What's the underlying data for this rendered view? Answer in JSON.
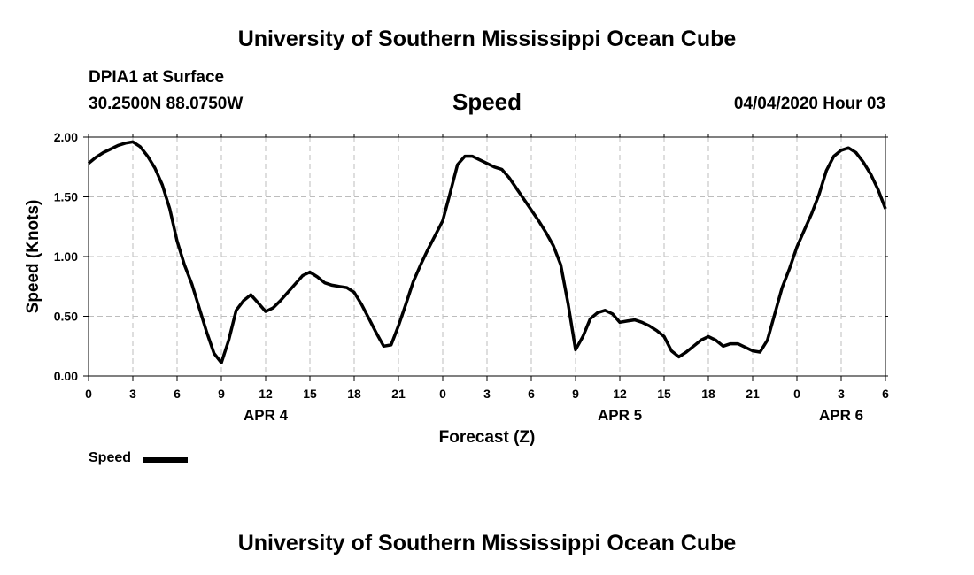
{
  "header": {
    "banner": "University of Southern Mississippi Ocean Cube",
    "station": "DPIA1 at Surface",
    "coords": "30.2500N 88.0750W",
    "plot_title": "Speed",
    "datetime": "04/04/2020 Hour 03"
  },
  "footer": {
    "banner": "University of Southern Mississippi Ocean Cube"
  },
  "legend": {
    "label": "Speed",
    "color": "#000000"
  },
  "chart_data": {
    "type": "line",
    "title": "Speed",
    "xlabel": "Forecast (Z)",
    "ylabel": "Speed (Knots)",
    "xlim": [
      0,
      54
    ],
    "ylim": [
      0,
      2.0
    ],
    "grid": true,
    "x_tick_values": [
      0,
      3,
      6,
      9,
      12,
      15,
      18,
      21,
      24,
      27,
      30,
      33,
      36,
      39,
      42,
      45,
      48,
      51,
      54
    ],
    "x_tick_labels": [
      "0",
      "3",
      "6",
      "9",
      "12",
      "15",
      "18",
      "21",
      "0",
      "3",
      "6",
      "9",
      "12",
      "15",
      "18",
      "21",
      "0",
      "3",
      "6"
    ],
    "y_tick_values": [
      0,
      0.5,
      1.0,
      1.5,
      2.0
    ],
    "y_tick_labels": [
      "0.00",
      "0.50",
      "1.00",
      "1.50",
      "2.00"
    ],
    "day_labels": [
      {
        "label": "APR 4",
        "x": 12
      },
      {
        "label": "APR 5",
        "x": 36
      },
      {
        "label": "APR 6",
        "x": 51
      }
    ],
    "series": [
      {
        "name": "Speed",
        "color": "#000000",
        "x": [
          0,
          0.5,
          1,
          1.5,
          2,
          2.5,
          3,
          3.5,
          4,
          4.5,
          5,
          5.5,
          6,
          6.5,
          7,
          7.5,
          8,
          8.5,
          9,
          9.5,
          10,
          10.5,
          11,
          11.5,
          12,
          12.5,
          13,
          13.5,
          14,
          14.5,
          15,
          15.5,
          16,
          16.5,
          17,
          17.5,
          18,
          18.5,
          19,
          19.5,
          20,
          20.5,
          21,
          21.5,
          22,
          22.5,
          23,
          23.5,
          24,
          24.5,
          25,
          25.5,
          26,
          26.5,
          27,
          27.5,
          28,
          28.5,
          29,
          29.5,
          30,
          30.5,
          31,
          31.5,
          32,
          32.5,
          33,
          33.5,
          34,
          34.5,
          35,
          35.5,
          36,
          36.5,
          37,
          37.5,
          38,
          38.5,
          39,
          39.5,
          40,
          40.5,
          41,
          41.5,
          42,
          42.5,
          43,
          43.5,
          44,
          44.5,
          45,
          45.5,
          46,
          46.5,
          47,
          47.5,
          48,
          48.5,
          49,
          49.5,
          50,
          50.5,
          51,
          51.5,
          52,
          52.5,
          53,
          53.5,
          54
        ],
        "values": [
          1.78,
          1.83,
          1.87,
          1.9,
          1.93,
          1.95,
          1.96,
          1.92,
          1.84,
          1.74,
          1.6,
          1.4,
          1.13,
          0.93,
          0.77,
          0.57,
          0.37,
          0.19,
          0.11,
          0.3,
          0.55,
          0.63,
          0.68,
          0.61,
          0.54,
          0.57,
          0.63,
          0.7,
          0.77,
          0.84,
          0.87,
          0.83,
          0.78,
          0.76,
          0.75,
          0.74,
          0.7,
          0.6,
          0.48,
          0.36,
          0.25,
          0.26,
          0.42,
          0.6,
          0.79,
          0.93,
          1.06,
          1.18,
          1.3,
          1.53,
          1.77,
          1.84,
          1.84,
          1.81,
          1.78,
          1.75,
          1.73,
          1.66,
          1.57,
          1.48,
          1.39,
          1.3,
          1.2,
          1.09,
          0.93,
          0.6,
          0.22,
          0.33,
          0.48,
          0.53,
          0.55,
          0.52,
          0.45,
          0.46,
          0.47,
          0.45,
          0.42,
          0.38,
          0.33,
          0.21,
          0.16,
          0.2,
          0.25,
          0.3,
          0.33,
          0.3,
          0.25,
          0.27,
          0.27,
          0.24,
          0.21,
          0.2,
          0.3,
          0.52,
          0.74,
          0.9,
          1.08,
          1.22,
          1.36,
          1.52,
          1.72,
          1.84,
          1.89,
          1.91,
          1.87,
          1.79,
          1.69,
          1.56,
          1.4
        ]
      }
    ]
  }
}
